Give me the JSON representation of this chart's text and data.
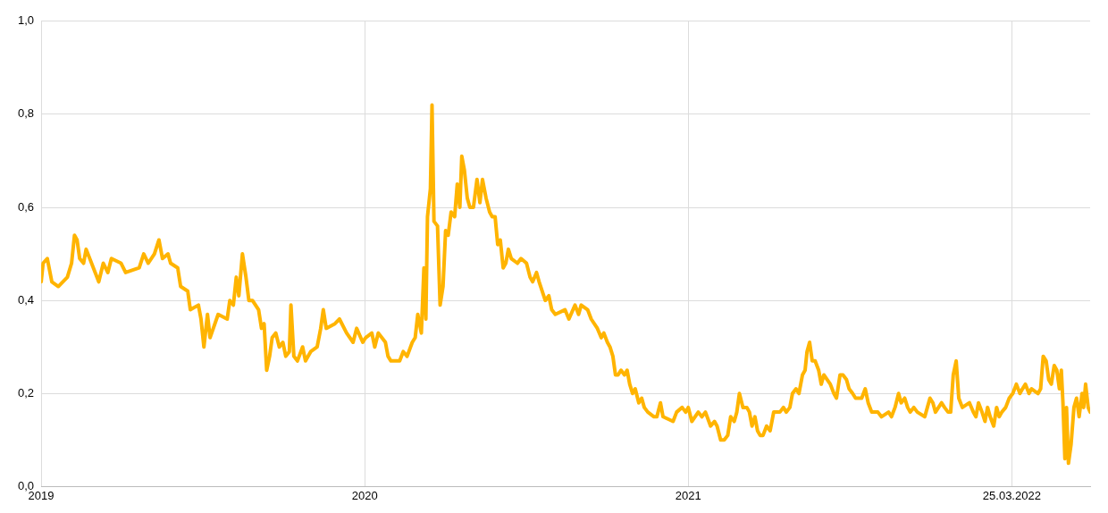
{
  "chart_data": {
    "type": "line",
    "xlim": [
      2019,
      2022.242
    ],
    "xticks": [
      2019,
      2020,
      2021,
      {
        "value": 2022,
        "label": "25.03.2022"
      }
    ],
    "ylim": [
      0,
      1
    ],
    "yticks": [
      {
        "value": 0,
        "label": "0,0"
      },
      {
        "value": 0.2,
        "label": "0,2"
      },
      {
        "value": 0.4,
        "label": "0,4"
      },
      {
        "value": 0.6,
        "label": "0,6"
      },
      {
        "value": 0.8,
        "label": "0,8"
      },
      {
        "value": 1,
        "label": "1,0"
      }
    ],
    "grid": true,
    "legend": false,
    "marker": "none",
    "line_style": "solid",
    "series": [
      {
        "color": "#ffb400",
        "x": [
          2019.0,
          2019.006,
          2019.019,
          2019.033,
          2019.053,
          2019.081,
          2019.094,
          2019.103,
          2019.111,
          2019.119,
          2019.131,
          2019.139,
          2019.167,
          2019.178,
          2019.192,
          2019.206,
          2019.217,
          2019.247,
          2019.261,
          2019.303,
          2019.317,
          2019.331,
          2019.35,
          2019.364,
          2019.375,
          2019.392,
          2019.4,
          2019.422,
          2019.431,
          2019.453,
          2019.461,
          2019.486,
          2019.494,
          2019.503,
          2019.514,
          2019.522,
          2019.547,
          2019.575,
          2019.583,
          2019.594,
          2019.603,
          2019.611,
          2019.622,
          2019.633,
          2019.642,
          2019.653,
          2019.672,
          2019.681,
          2019.689,
          2019.697,
          2019.706,
          2019.714,
          2019.725,
          2019.736,
          2019.747,
          2019.756,
          2019.767,
          2019.772,
          2019.781,
          2019.792,
          2019.808,
          2019.817,
          2019.833,
          2019.853,
          2019.864,
          2019.872,
          2019.881,
          2019.908,
          2019.922,
          2019.944,
          2019.964,
          2019.975,
          2019.994,
          2020.003,
          2020.022,
          2020.031,
          2020.042,
          2020.064,
          2020.072,
          2020.081,
          2020.108,
          2020.119,
          2020.131,
          2020.147,
          2020.156,
          2020.164,
          2020.175,
          2020.183,
          2020.189,
          2020.194,
          2020.203,
          2020.208,
          2020.214,
          2020.225,
          2020.233,
          2020.242,
          2020.25,
          2020.258,
          2020.267,
          2020.278,
          2020.286,
          2020.294,
          2020.3,
          2020.308,
          2020.317,
          2020.325,
          2020.336,
          2020.347,
          2020.356,
          2020.364,
          2020.375,
          2020.386,
          2020.394,
          2020.403,
          2020.411,
          2020.419,
          2020.428,
          2020.436,
          2020.444,
          2020.453,
          2020.472,
          2020.483,
          2020.5,
          2020.511,
          2020.519,
          2020.531,
          2020.539,
          2020.558,
          2020.569,
          2020.578,
          2020.589,
          2020.619,
          2020.631,
          2020.65,
          2020.661,
          2020.669,
          2020.689,
          2020.7,
          2020.719,
          2020.731,
          2020.739,
          2020.75,
          2020.758,
          2020.767,
          2020.775,
          2020.783,
          2020.792,
          2020.803,
          2020.811,
          2020.819,
          2020.828,
          2020.836,
          2020.847,
          2020.856,
          2020.864,
          2020.875,
          2020.894,
          2020.903,
          2020.914,
          2020.922,
          2020.953,
          2020.964,
          2020.981,
          2020.992,
          2021.0,
          2021.011,
          2021.031,
          2021.042,
          2021.053,
          2021.069,
          2021.081,
          2021.089,
          2021.1,
          2021.111,
          2021.122,
          2021.131,
          2021.142,
          2021.15,
          2021.158,
          2021.169,
          2021.181,
          2021.189,
          2021.197,
          2021.206,
          2021.214,
          2021.222,
          2021.231,
          2021.242,
          2021.253,
          2021.264,
          2021.283,
          2021.294,
          2021.303,
          2021.314,
          2021.322,
          2021.333,
          2021.342,
          2021.353,
          2021.361,
          2021.367,
          2021.375,
          2021.383,
          2021.392,
          2021.403,
          2021.411,
          2021.419,
          2021.439,
          2021.45,
          2021.458,
          2021.469,
          2021.478,
          2021.489,
          2021.497,
          2021.508,
          2021.517,
          2021.536,
          2021.547,
          2021.556,
          2021.567,
          2021.586,
          2021.597,
          2021.619,
          2021.628,
          2021.639,
          2021.65,
          2021.658,
          2021.669,
          2021.678,
          2021.686,
          2021.697,
          2021.708,
          2021.731,
          2021.739,
          2021.747,
          2021.756,
          2021.764,
          2021.783,
          2021.792,
          2021.803,
          2021.811,
          2021.819,
          2021.828,
          2021.836,
          2021.847,
          2021.869,
          2021.881,
          2021.889,
          2021.897,
          2021.908,
          2021.917,
          2021.925,
          2021.933,
          2021.944,
          2021.953,
          2021.961,
          2021.969,
          2021.981,
          2021.992,
          2022.003,
          2022.014,
          2022.025,
          2022.033,
          2022.042,
          2022.053,
          2022.061,
          2022.081,
          2022.089,
          2022.097,
          2022.106,
          2022.114,
          2022.122,
          2022.131,
          2022.139,
          2022.147,
          2022.153,
          2022.158,
          2022.164,
          2022.169,
          2022.175,
          2022.183,
          2022.192,
          2022.2,
          2022.208,
          2022.217,
          2022.222,
          2022.228,
          2022.236,
          2022.242
        ],
        "values": [
          0.44,
          0.48,
          0.49,
          0.44,
          0.43,
          0.45,
          0.48,
          0.54,
          0.53,
          0.49,
          0.48,
          0.51,
          0.46,
          0.44,
          0.48,
          0.46,
          0.49,
          0.48,
          0.46,
          0.47,
          0.5,
          0.48,
          0.5,
          0.53,
          0.49,
          0.5,
          0.48,
          0.47,
          0.43,
          0.42,
          0.38,
          0.39,
          0.36,
          0.3,
          0.37,
          0.32,
          0.37,
          0.36,
          0.4,
          0.39,
          0.45,
          0.41,
          0.5,
          0.45,
          0.4,
          0.4,
          0.38,
          0.34,
          0.35,
          0.25,
          0.28,
          0.32,
          0.33,
          0.3,
          0.31,
          0.28,
          0.29,
          0.39,
          0.28,
          0.27,
          0.3,
          0.27,
          0.29,
          0.3,
          0.34,
          0.38,
          0.34,
          0.35,
          0.36,
          0.33,
          0.31,
          0.34,
          0.31,
          0.32,
          0.33,
          0.3,
          0.33,
          0.31,
          0.28,
          0.27,
          0.27,
          0.29,
          0.28,
          0.31,
          0.32,
          0.37,
          0.33,
          0.47,
          0.36,
          0.58,
          0.64,
          0.82,
          0.57,
          0.56,
          0.39,
          0.43,
          0.55,
          0.54,
          0.59,
          0.58,
          0.65,
          0.6,
          0.71,
          0.68,
          0.62,
          0.6,
          0.6,
          0.66,
          0.61,
          0.66,
          0.62,
          0.59,
          0.58,
          0.58,
          0.52,
          0.53,
          0.47,
          0.48,
          0.51,
          0.49,
          0.48,
          0.49,
          0.48,
          0.45,
          0.44,
          0.46,
          0.44,
          0.4,
          0.41,
          0.38,
          0.37,
          0.38,
          0.36,
          0.39,
          0.37,
          0.39,
          0.38,
          0.36,
          0.34,
          0.32,
          0.33,
          0.31,
          0.3,
          0.28,
          0.24,
          0.24,
          0.25,
          0.24,
          0.25,
          0.22,
          0.2,
          0.21,
          0.18,
          0.19,
          0.17,
          0.16,
          0.15,
          0.15,
          0.18,
          0.15,
          0.14,
          0.16,
          0.17,
          0.16,
          0.17,
          0.14,
          0.16,
          0.15,
          0.16,
          0.13,
          0.14,
          0.13,
          0.1,
          0.1,
          0.11,
          0.15,
          0.14,
          0.16,
          0.2,
          0.17,
          0.17,
          0.16,
          0.13,
          0.15,
          0.12,
          0.11,
          0.11,
          0.13,
          0.12,
          0.16,
          0.16,
          0.17,
          0.16,
          0.17,
          0.2,
          0.21,
          0.2,
          0.24,
          0.25,
          0.29,
          0.31,
          0.27,
          0.27,
          0.25,
          0.22,
          0.24,
          0.22,
          0.2,
          0.19,
          0.24,
          0.24,
          0.23,
          0.21,
          0.2,
          0.19,
          0.19,
          0.21,
          0.18,
          0.16,
          0.16,
          0.15,
          0.16,
          0.15,
          0.17,
          0.2,
          0.18,
          0.19,
          0.17,
          0.16,
          0.17,
          0.16,
          0.15,
          0.17,
          0.19,
          0.18,
          0.16,
          0.18,
          0.17,
          0.16,
          0.16,
          0.24,
          0.27,
          0.19,
          0.17,
          0.18,
          0.16,
          0.15,
          0.18,
          0.16,
          0.14,
          0.17,
          0.15,
          0.13,
          0.17,
          0.15,
          0.16,
          0.17,
          0.19,
          0.2,
          0.22,
          0.2,
          0.21,
          0.22,
          0.2,
          0.21,
          0.2,
          0.21,
          0.28,
          0.27,
          0.23,
          0.22,
          0.26,
          0.25,
          0.21,
          0.25,
          0.18,
          0.06,
          0.17,
          0.05,
          0.09,
          0.17,
          0.19,
          0.15,
          0.2,
          0.17,
          0.22,
          0.17,
          0.16
        ]
      }
    ]
  }
}
